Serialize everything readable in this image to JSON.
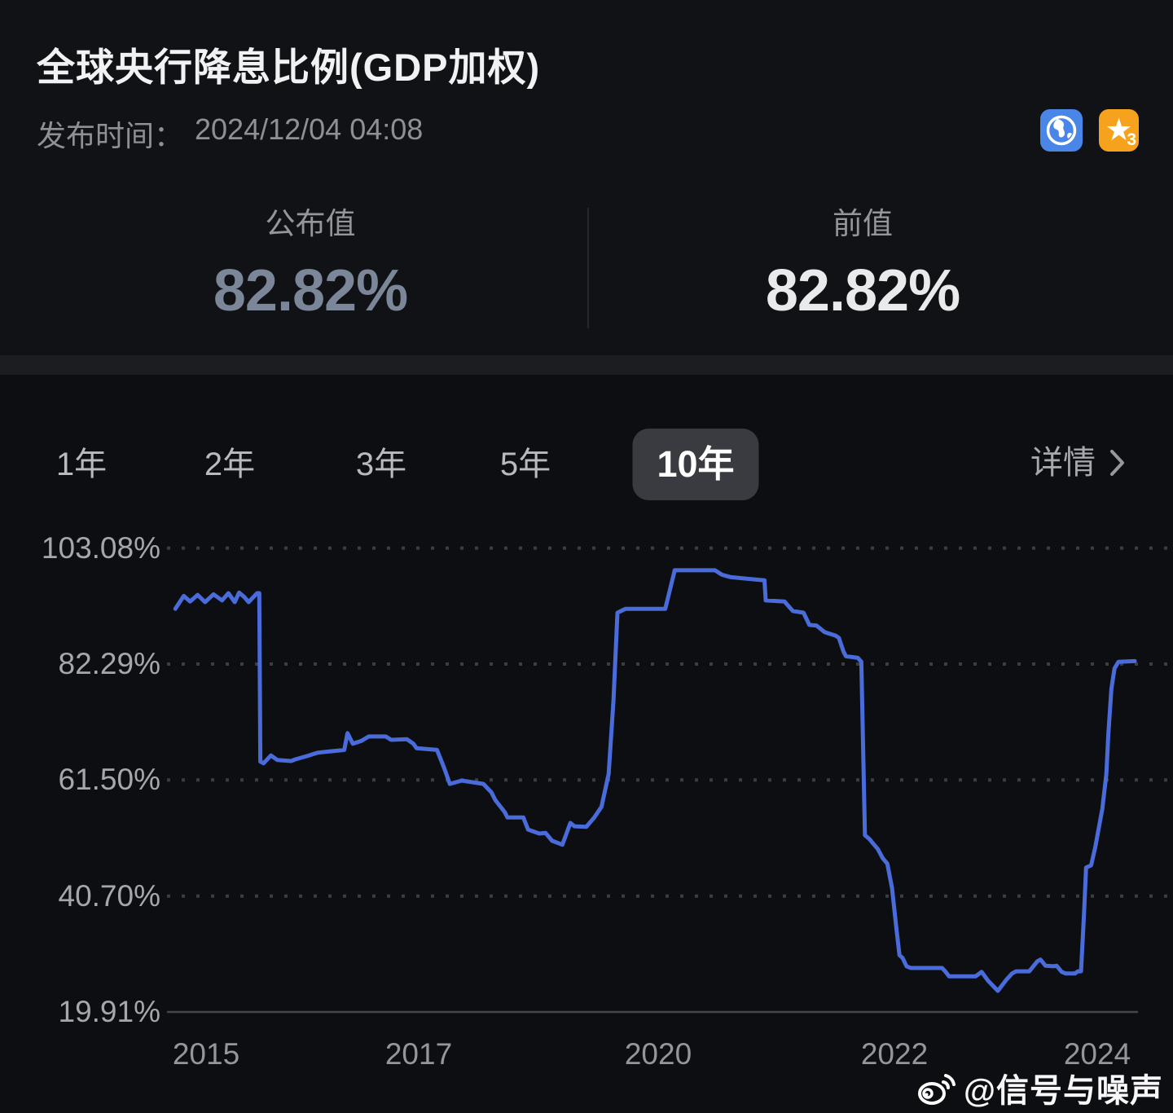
{
  "header": {
    "title": "全球央行降息比例(GDP加权)",
    "publish_label": "发布时间：",
    "publish_time": "2024/12/04 04:08",
    "published": {
      "label": "公布值",
      "value": "82.82%"
    },
    "previous": {
      "label": "前值",
      "value": "82.82%"
    },
    "icons": {
      "globe": "globe-icon",
      "favorite_star": "star-icon",
      "star_badge": "3",
      "globe_bg": "#4a85e8",
      "star_bg": "#f6a21c"
    },
    "colors": {
      "published_value": "#7b8698",
      "previous_value": "#e9eaec"
    }
  },
  "toolbar": {
    "tabs": [
      {
        "label": "1年",
        "selected": false
      },
      {
        "label": "2年",
        "selected": false
      },
      {
        "label": "3年",
        "selected": false
      },
      {
        "label": "5年",
        "selected": false
      },
      {
        "label": "10年",
        "selected": true
      }
    ],
    "details_label": "详情"
  },
  "chart_data": {
    "type": "line",
    "title": "全球央行降息比例(GDP加权) — 10年",
    "xlabel": "",
    "ylabel": "",
    "grid": "dotted horizontal gridlines, solid bottom axis",
    "legend_position": "none",
    "line_color": "#4a6cdb",
    "grid_dot_color": "#3c3d42",
    "axis_line_color": "#45464b",
    "xlim": [
      2014.6,
      2024.7
    ],
    "ylim": [
      19.91,
      103.08
    ],
    "y_ticks": [
      {
        "label": "103.08%",
        "value": 103.08
      },
      {
        "label": "82.29%",
        "value": 82.29
      },
      {
        "label": "61.50%",
        "value": 61.5
      },
      {
        "label": "40.70%",
        "value": 40.7
      },
      {
        "label": "19.91%",
        "value": 19.91
      }
    ],
    "x_ticks": [
      {
        "label": "2015",
        "year": 2015
      },
      {
        "label": "2017",
        "year": 2017
      },
      {
        "label": "2020",
        "year": 2020
      },
      {
        "label": "2022",
        "year": 2022
      },
      {
        "label": "2024",
        "year": 2024
      }
    ],
    "points": [
      [
        2014.71,
        92.2
      ],
      [
        2014.79,
        94.5
      ],
      [
        2014.85,
        93.5
      ],
      [
        2014.92,
        94.7
      ],
      [
        2014.99,
        93.4
      ],
      [
        2015.07,
        94.8
      ],
      [
        2015.15,
        93.7
      ],
      [
        2015.21,
        95.0
      ],
      [
        2015.27,
        93.4
      ],
      [
        2015.31,
        95.1
      ],
      [
        2015.36,
        94.3
      ],
      [
        2015.4,
        93.4
      ],
      [
        2015.48,
        95.0
      ],
      [
        2015.5,
        95.0
      ],
      [
        2015.51,
        64.8
      ],
      [
        2015.54,
        64.5
      ],
      [
        2015.61,
        65.9
      ],
      [
        2015.67,
        65.1
      ],
      [
        2015.8,
        64.9
      ],
      [
        2015.84,
        65.2
      ],
      [
        2015.95,
        65.8
      ],
      [
        2016.05,
        66.4
      ],
      [
        2016.15,
        66.6
      ],
      [
        2016.26,
        66.8
      ],
      [
        2016.3,
        66.9
      ],
      [
        2016.33,
        69.9
      ],
      [
        2016.38,
        68.0
      ],
      [
        2016.46,
        68.5
      ],
      [
        2016.53,
        69.3
      ],
      [
        2016.69,
        69.3
      ],
      [
        2016.74,
        68.7
      ],
      [
        2016.89,
        68.8
      ],
      [
        2016.95,
        68.0
      ],
      [
        2016.98,
        67.2
      ],
      [
        2017.23,
        66.9
      ],
      [
        2017.32,
        63.6
      ],
      [
        2017.39,
        60.8
      ],
      [
        2017.54,
        61.4
      ],
      [
        2017.81,
        60.8
      ],
      [
        2017.91,
        59.3
      ],
      [
        2017.96,
        57.9
      ],
      [
        2018.08,
        55.7
      ],
      [
        2018.11,
        54.8
      ],
      [
        2018.31,
        54.8
      ],
      [
        2018.37,
        52.6
      ],
      [
        2018.51,
        51.9
      ],
      [
        2018.59,
        52.0
      ],
      [
        2018.67,
        50.6
      ],
      [
        2018.8,
        49.9
      ],
      [
        2018.9,
        53.8
      ],
      [
        2018.95,
        53.2
      ],
      [
        2019.1,
        53.1
      ],
      [
        2019.2,
        54.8
      ],
      [
        2019.29,
        56.7
      ],
      [
        2019.38,
        62.6
      ],
      [
        2019.44,
        75.7
      ],
      [
        2019.49,
        91.5
      ],
      [
        2019.59,
        92.2
      ],
      [
        2020.06,
        92.2
      ],
      [
        2020.14,
        99.1
      ],
      [
        2020.48,
        99.1
      ],
      [
        2020.54,
        98.3
      ],
      [
        2020.61,
        97.9
      ],
      [
        2020.75,
        97.6
      ],
      [
        2020.9,
        97.3
      ],
      [
        2020.91,
        93.7
      ],
      [
        2021.07,
        93.5
      ],
      [
        2021.14,
        91.8
      ],
      [
        2021.23,
        91.5
      ],
      [
        2021.28,
        89.3
      ],
      [
        2021.34,
        89.2
      ],
      [
        2021.41,
        88.0
      ],
      [
        2021.5,
        87.4
      ],
      [
        2021.53,
        87.0
      ],
      [
        2021.57,
        84.5
      ],
      [
        2021.59,
        83.7
      ],
      [
        2021.69,
        83.4
      ],
      [
        2021.72,
        82.7
      ],
      [
        2021.75,
        51.6
      ],
      [
        2021.79,
        50.9
      ],
      [
        2021.82,
        50.1
      ],
      [
        2021.86,
        49.1
      ],
      [
        2021.9,
        47.5
      ],
      [
        2021.94,
        46.5
      ],
      [
        2021.98,
        42.1
      ],
      [
        2022.02,
        34.8
      ],
      [
        2022.05,
        30.1
      ],
      [
        2022.08,
        29.6
      ],
      [
        2022.12,
        28.1
      ],
      [
        2022.16,
        27.8
      ],
      [
        2022.47,
        27.8
      ],
      [
        2022.5,
        27.2
      ],
      [
        2022.54,
        26.3
      ],
      [
        2022.8,
        26.3
      ],
      [
        2022.86,
        27.1
      ],
      [
        2022.92,
        25.6
      ],
      [
        2023.02,
        23.7
      ],
      [
        2023.1,
        25.6
      ],
      [
        2023.16,
        26.8
      ],
      [
        2023.2,
        27.2
      ],
      [
        2023.33,
        27.2
      ],
      [
        2023.41,
        29.0
      ],
      [
        2023.44,
        29.3
      ],
      [
        2023.49,
        28.2
      ],
      [
        2023.57,
        28.1
      ],
      [
        2023.6,
        28.2
      ],
      [
        2023.65,
        27.1
      ],
      [
        2023.69,
        26.8
      ],
      [
        2023.78,
        26.8
      ],
      [
        2023.81,
        27.2
      ],
      [
        2023.84,
        27.2
      ],
      [
        2023.87,
        37.6
      ],
      [
        2023.89,
        45.8
      ],
      [
        2023.94,
        46.2
      ],
      [
        2023.98,
        49.4
      ],
      [
        2024.05,
        56.3
      ],
      [
        2024.09,
        62.6
      ],
      [
        2024.11,
        69.9
      ],
      [
        2024.14,
        77.9
      ],
      [
        2024.17,
        81.5
      ],
      [
        2024.21,
        82.7
      ],
      [
        2024.37,
        82.82
      ]
    ]
  },
  "watermark": {
    "icon": "weibo-logo-icon",
    "text": "@信号与噪声"
  }
}
